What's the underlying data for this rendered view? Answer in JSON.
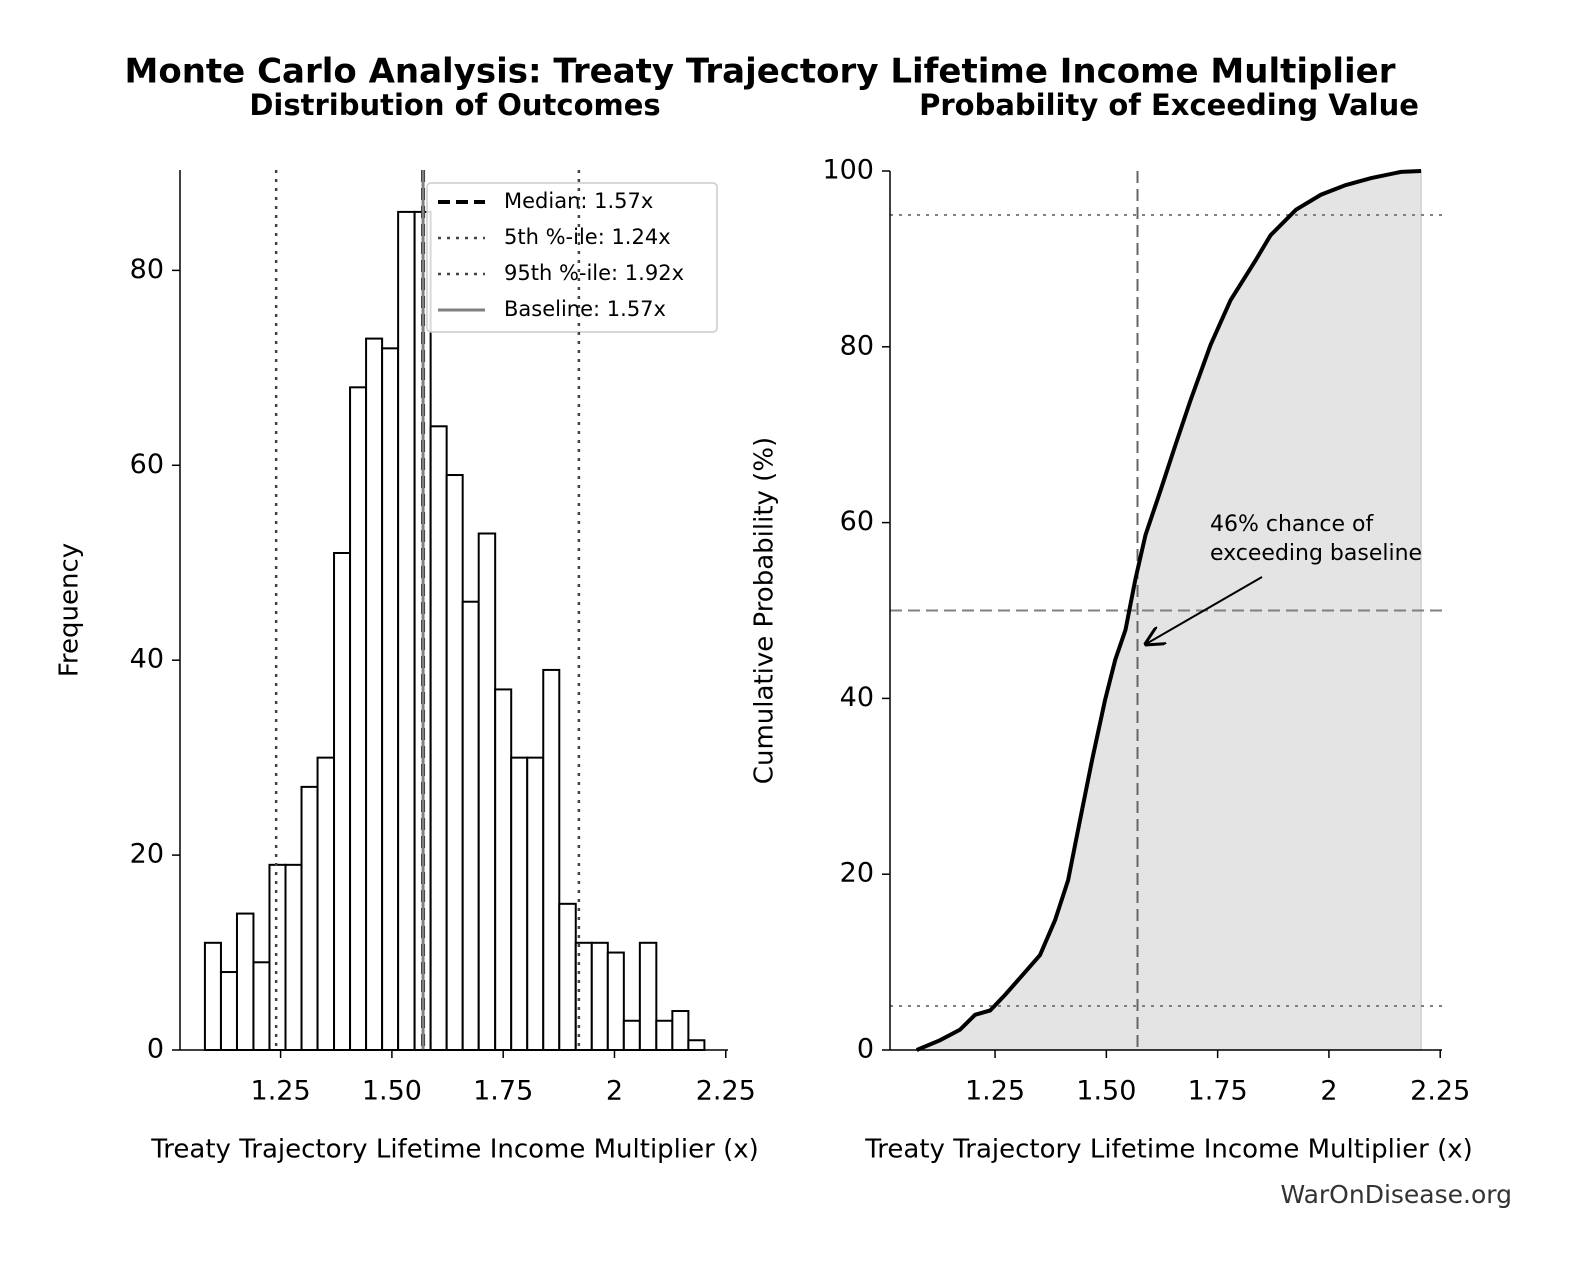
{
  "title": "Monte Carlo Analysis: Treaty Trajectory Lifetime Income Multiplier",
  "source": "WarOnDisease.org",
  "chart_data": [
    {
      "type": "histogram",
      "title": "Distribution of Outcomes",
      "x_label": "Treaty Trajectory Lifetime Income Multiplier (x)",
      "y_label": "Frequency",
      "bins": [
        1.08,
        1.116,
        1.152,
        1.189,
        1.225,
        1.261,
        1.297,
        1.333,
        1.37,
        1.406,
        1.442,
        1.478,
        1.514,
        1.551,
        1.587,
        1.623,
        1.659,
        1.695,
        1.732,
        1.768,
        1.804,
        1.84,
        1.876,
        1.913,
        1.949,
        1.985,
        2.021,
        2.057,
        2.094,
        2.13,
        2.166,
        2.202
      ],
      "values": [
        11,
        8,
        14,
        9,
        19,
        19,
        27,
        30,
        51,
        68,
        73,
        72,
        86,
        86,
        64,
        59,
        46,
        53,
        37,
        30,
        30,
        39,
        15,
        11,
        11,
        10,
        3,
        11,
        3,
        4,
        1
      ],
      "color": "#ffffff",
      "edgecolor": "#000000",
      "xlim": [
        1.024,
        2.255
      ],
      "xticks": [
        1.25,
        {
          "value": 1.5,
          "label": "1.50"
        },
        1.75,
        2,
        2.25
      ],
      "ylim": [
        0,
        90.3
      ],
      "yticks": [
        0,
        20,
        40,
        60,
        80
      ],
      "legend": "upper right",
      "reference_lines": [
        {
          "label": "Median: 1.57x",
          "value": 1.57,
          "color": "#000000",
          "style": "dashed"
        },
        {
          "label": "5th %-ile: 1.24x",
          "value": 1.24,
          "color": "#444444",
          "style": "dotted"
        },
        {
          "label": "95th %-ile: 1.92x",
          "value": 1.92,
          "color": "#444444",
          "style": "dotted"
        },
        {
          "label": "Baseline: 1.57x",
          "value": 1.57,
          "color": "#808080",
          "style": "solid"
        }
      ]
    },
    {
      "type": "line",
      "title": "Probability of Exceeding Value",
      "x_label": "Treaty Trajectory Lifetime Income Multiplier (x)",
      "y_label": "Cumulative Probability (%)",
      "x": [
        1.074,
        1.126,
        1.171,
        1.205,
        1.239,
        1.273,
        1.306,
        1.351,
        1.385,
        1.414,
        1.441,
        1.468,
        1.497,
        1.52,
        1.543,
        1.565,
        1.588,
        1.622,
        1.655,
        1.689,
        1.734,
        1.779,
        1.836,
        1.869,
        1.926,
        1.982,
        2.038,
        2.095,
        2.162,
        2.207
      ],
      "values": [
        0,
        1.1,
        2.3,
        4.0,
        4.5,
        6.3,
        8.2,
        10.8,
        14.8,
        19.3,
        26.2,
        33.0,
        39.8,
        44.4,
        47.8,
        53.5,
        58.6,
        63.7,
        68.8,
        73.9,
        80.2,
        85.3,
        89.9,
        92.7,
        95.6,
        97.3,
        98.4,
        99.2,
        99.9,
        100
      ],
      "color": "#000000",
      "fill": "#e4e4e4",
      "xlim": [
        1.014,
        2.254
      ],
      "xticks": [
        1.25,
        {
          "value": 1.5,
          "label": "1.50"
        },
        1.75,
        2,
        2.25
      ],
      "ylim": [
        0,
        100
      ],
      "yticks": [
        0,
        20,
        40,
        60,
        80,
        100
      ],
      "hlines": [
        {
          "value": 5,
          "style": "dotted"
        },
        {
          "value": 95,
          "style": "dotted"
        },
        {
          "value": 50,
          "style": "dashed"
        }
      ],
      "vlines": [
        {
          "value": 1.57,
          "style": "dashed"
        }
      ],
      "annotation": [
        "46% chance of",
        "exceeding baseline"
      ]
    }
  ]
}
